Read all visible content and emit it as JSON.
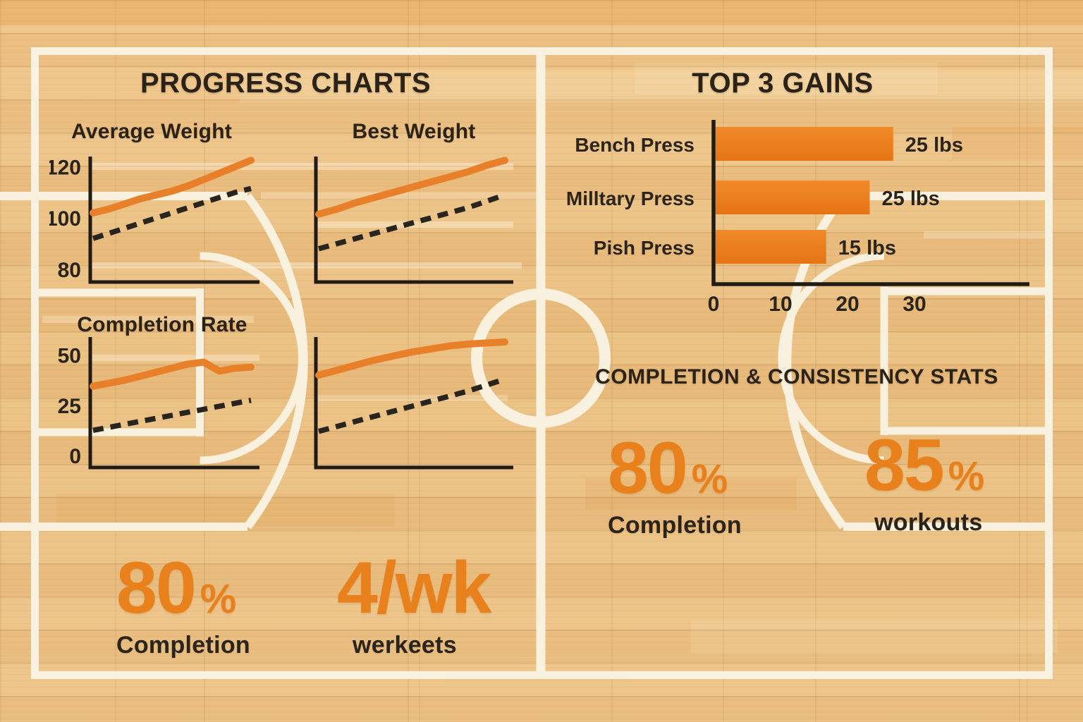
{
  "sections": {
    "progress": {
      "title": "PROGRESS CHARTS"
    },
    "gains": {
      "title": "TOP 3 GAINS"
    },
    "stats": {
      "title": "COMPLETION & CONSISTENCY STATS"
    }
  },
  "chart_data": [
    {
      "type": "line",
      "title": "Average Weight",
      "yticks": [
        120,
        100,
        80
      ],
      "ylim": [
        75,
        124
      ],
      "grid": false,
      "series": [
        {
          "name": "progress-line",
          "style": "solid-orange",
          "values": [
            102,
            103.5,
            105.5,
            107.5,
            109,
            110.5,
            112.5,
            115,
            117.5,
            120,
            122.5
          ]
        },
        {
          "name": "goal-line",
          "style": "dashed-dark",
          "values": [
            92,
            94,
            96,
            98,
            100,
            102,
            104,
            106,
            108,
            110,
            111.5
          ]
        }
      ]
    },
    {
      "type": "line",
      "title": "Best Weight",
      "yticks": [],
      "ylim": [
        75,
        124
      ],
      "grid": false,
      "series": [
        {
          "name": "progress-line",
          "style": "solid-orange",
          "values": [
            101.5,
            103.5,
            106,
            108,
            110,
            112,
            114,
            116,
            118,
            120.5,
            122.5
          ]
        },
        {
          "name": "goal-line",
          "style": "dashed-dark",
          "values": [
            88,
            90,
            92,
            94,
            96,
            98,
            100,
            102,
            104,
            106.5,
            109
          ]
        }
      ]
    },
    {
      "type": "line",
      "title": "Completion Rate",
      "yticks": [
        50,
        25,
        0
      ],
      "ylim": [
        -6,
        59
      ],
      "grid": false,
      "series": [
        {
          "name": "progress-line",
          "style": "solid-orange",
          "values": [
            34.5,
            36,
            37.5,
            39.5,
            41.5,
            43.5,
            45.5,
            46.5,
            42,
            43.5,
            44
          ]
        },
        {
          "name": "goal-line",
          "style": "dashed-dark",
          "values": [
            12.5,
            14,
            15.5,
            17,
            18.5,
            20,
            21.5,
            23,
            24.5,
            26,
            27.5
          ]
        }
      ]
    },
    {
      "type": "line",
      "title": "",
      "yticks": [],
      "ylim": [
        -6,
        59
      ],
      "grid": false,
      "series": [
        {
          "name": "progress-line",
          "style": "solid-orange",
          "values": [
            40,
            42.5,
            45,
            47.5,
            49.5,
            51.5,
            53,
            54.5,
            55.5,
            56,
            56.5
          ]
        },
        {
          "name": "goal-line",
          "style": "dashed-dark",
          "values": [
            12,
            14.5,
            17,
            19.5,
            22,
            24.5,
            27,
            29.5,
            32,
            35,
            38
          ]
        }
      ]
    },
    {
      "type": "bar-horizontal",
      "title": "TOP 3 GAINS",
      "categories": [
        "Bench Press",
        "Milltary Press",
        "Pish Press"
      ],
      "values": [
        25,
        25,
        15
      ],
      "value_labels": [
        "25 lbs",
        "25 lbs",
        "15 lbs"
      ],
      "bar_units": [
        26.5,
        23,
        16.5
      ],
      "xticks": [
        0,
        10,
        20,
        30
      ],
      "xlim": [
        0,
        47
      ],
      "grid": false
    }
  ],
  "stats": {
    "left": [
      {
        "value": "80",
        "suffix": "%",
        "label": "Completion"
      },
      {
        "value": "4/wk",
        "suffix": "",
        "label": "werkeets"
      }
    ],
    "right": [
      {
        "value": "80",
        "suffix": "%",
        "label": "Completion"
      },
      {
        "value": "85",
        "suffix": "%",
        "label": "workouts"
      }
    ]
  },
  "icons": {
    "background": "basketball-court"
  },
  "colors": {
    "accent_orange": "#e8802a",
    "bar_orange": "#ee7d1b",
    "goal_dark": "#29241d",
    "court_line_cream": "#faf3e2",
    "text_dark": "#2b241b",
    "wood_tan": "#eac184"
  }
}
